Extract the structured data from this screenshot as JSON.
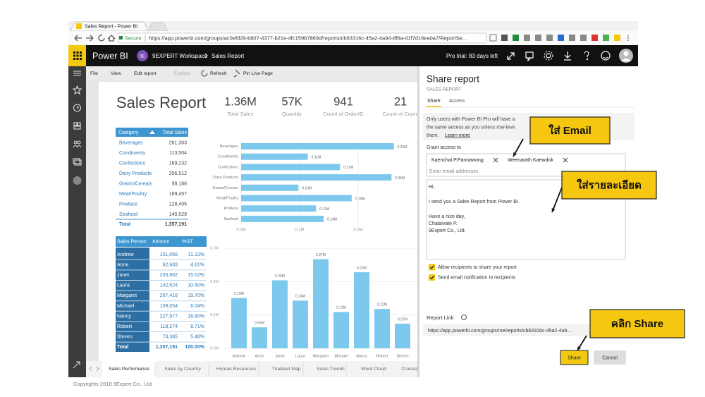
{
  "browser": {
    "tab_title": "Sales Report - Power BI",
    "secure": "Secure",
    "url": "https://app.powerbi.com/groups/ac0efd29-b807-4377-b21e-4fc159b7869d/reports/cb63316c-45a2-4a94-8f6a-d1f7d16ea0a7/ReportSe..."
  },
  "app_bar": {
    "product": "Power BI",
    "workspace_badge": "9E",
    "breadcrumb": [
      "9EXPERT Workspace",
      "Sales Report"
    ],
    "trial": "Pro trial: 83 days left"
  },
  "toolbar": [
    "File",
    "View",
    "Edit report",
    "Explore",
    "Refresh",
    "Pin Live Page"
  ],
  "report": {
    "title": "Sales Report",
    "kpis": [
      {
        "value": "1.36M",
        "label": "Total Sales"
      },
      {
        "value": "57K",
        "label": "Quantity"
      },
      {
        "value": "941",
        "label": "Count of OrderID"
      },
      {
        "value": "21",
        "label": "Count of Count"
      }
    ],
    "category_table": {
      "columns": [
        "Category",
        "Total Sales"
      ],
      "rows": [
        [
          "Beverages",
          "261,363"
        ],
        [
          "Condiments",
          "113,504"
        ],
        [
          "Confections",
          "169,232"
        ],
        [
          "Dairy Products",
          "256,512"
        ],
        [
          "Grains/Cereals",
          "98,188"
        ],
        [
          "Meat/Poultry",
          "189,457"
        ],
        [
          "Produce",
          "128,405"
        ],
        [
          "Seafood",
          "140,529"
        ]
      ],
      "total": [
        "Total",
        "1,357,191"
      ]
    },
    "category_chart": {
      "type": "bar",
      "orientation": "horizontal",
      "categories": [
        "Beverages",
        "Condiments",
        "Confections",
        "Dairy Products",
        "Grains/Cereals",
        "Meat/Poultry",
        "Produce",
        "Seafood"
      ],
      "values": [
        0.261,
        0.114,
        0.169,
        0.257,
        0.098,
        0.189,
        0.128,
        0.141
      ],
      "value_labels": [
        "0.26M",
        "0.11M",
        "0.17M",
        "0.26M",
        "0.10M",
        "0.19M",
        "0.13M",
        "0.14M"
      ],
      "xlim": [
        0,
        0.3
      ],
      "xticks": [
        {
          "value": 0,
          "label": "0.0M"
        },
        {
          "value": 0.1,
          "label": "0.1M"
        },
        {
          "value": 0.2,
          "label": "0.2M"
        }
      ],
      "color": "#7dc9ee"
    },
    "person_table": {
      "columns": [
        "Sales Person",
        "Amount",
        "%GT"
      ],
      "rows": [
        [
          "Andrew",
          "151,056",
          "11.13%"
        ],
        [
          "Anne",
          "62,603",
          "4.61%"
        ],
        [
          "Janet",
          "203,902",
          "15.02%"
        ],
        [
          "Laura",
          "142,524",
          "10.50%"
        ],
        [
          "Margaret",
          "267,416",
          "19.70%"
        ],
        [
          "Michael",
          "109,054",
          "8.04%"
        ],
        [
          "Nancy",
          "227,977",
          "16.80%"
        ],
        [
          "Robert",
          "118,274",
          "8.71%"
        ],
        [
          "Steven",
          "74,385",
          "5.48%"
        ]
      ],
      "total": [
        "Total",
        "1,357,191",
        "100.00%"
      ]
    },
    "person_chart": {
      "type": "bar",
      "orientation": "vertical",
      "categories": [
        "Andrew",
        "Anne",
        "Janet",
        "Laura",
        "Margaret",
        "Michael",
        "Nancy",
        "Robert",
        "Steven"
      ],
      "values": [
        0.151,
        0.063,
        0.204,
        0.143,
        0.267,
        0.109,
        0.228,
        0.118,
        0.074
      ],
      "value_labels": [
        "0.15M",
        "0.06M",
        "0.20M",
        "0.14M",
        "0.27M",
        "0.11M",
        "0.23M",
        "0.12M",
        "0.07M"
      ],
      "ylim": [
        0,
        0.3
      ],
      "yticks": [
        {
          "value": 0,
          "label": "0.0M"
        },
        {
          "value": 0.1,
          "label": "0.1M"
        },
        {
          "value": 0.2,
          "label": "0.2M"
        },
        {
          "value": 0.3,
          "label": "0.3M"
        }
      ],
      "color": "#7dc9ee"
    }
  },
  "page_tabs": [
    "Sales Performance",
    "Sales by Country",
    "Human Resources",
    "Thailand Map",
    "Sales Trends",
    "Word Cloud",
    "Crosstab"
  ],
  "share_panel": {
    "title": "Share report",
    "subtitle": "SALES REPORT",
    "tabs": [
      "Share",
      "Access"
    ],
    "notice": [
      "Only users with Power BI Pro will have a",
      "the same access as you unless row-leve",
      "them."
    ],
    "learn_more": "Learn more",
    "grant_label": "Grant access to",
    "recipients": [
      "Kaenchai P.Pannawong",
      "Weenarath Kaewdok"
    ],
    "email_placeholder": "Enter email addresses",
    "message": [
      "Hi,",
      "I send you a Sales Report from Power BI.",
      "Have a nice day,",
      "Chalaivate P.",
      "9Expert Co., Ltd."
    ],
    "options": [
      "Allow recipients to share your report",
      "Send email notification to recipients"
    ],
    "link_label": "Report Link",
    "link": "https://app.powerbi.com/groups/me/reports/cb63316c-45a2-4a9...",
    "buttons": [
      "Share",
      "Cancel"
    ]
  },
  "callouts": [
    "ใส่ Email",
    "ใส่รายละเอียด",
    "คลิก Share"
  ],
  "footer": "Copyrights 2018 9Expert Co., Ltd."
}
